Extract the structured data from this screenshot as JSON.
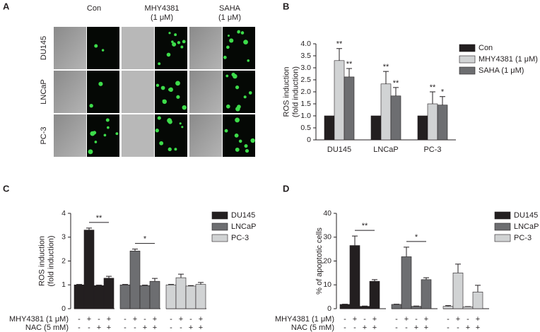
{
  "panel_a": {
    "label": "A",
    "columns": [
      [
        "Con"
      ],
      [
        "MHY4381",
        "(1 μM)"
      ],
      [
        "SAHA",
        "(1 μM)"
      ]
    ],
    "rows": [
      "DU145",
      "LNCaP",
      "PC-3"
    ]
  },
  "chart_data": [
    {
      "type": "bar",
      "label": "B",
      "ylabel": [
        "ROS induction",
        "(fold induction)"
      ],
      "categories": [
        "DU145",
        "LNCaP",
        "PC-3"
      ],
      "series": [
        {
          "name": "Con",
          "color": "#231f20",
          "values": [
            1,
            1,
            1
          ]
        },
        {
          "name": "MHY4381 (1 μM)",
          "color": "#d1d3d4",
          "values": [
            3.3,
            2.33,
            1.5
          ],
          "errors": [
            0.5,
            0.52,
            0.5
          ],
          "significance": [
            "**",
            "**",
            "**"
          ]
        },
        {
          "name": "SAHA (1 μM)",
          "color": "#6d6e71",
          "values": [
            2.62,
            1.83,
            1.45
          ],
          "errors": [
            0.35,
            0.35,
            0.35
          ],
          "significance": [
            "**",
            "**",
            "*"
          ]
        }
      ],
      "ylim": [
        0,
        4
      ],
      "yticks": [
        0,
        0.5,
        {
          "value": 1,
          "label": "1.0"
        },
        1.5,
        {
          "value": 2,
          "label": "2.0"
        },
        2.5,
        {
          "value": 3,
          "label": "3.0"
        },
        3.5,
        {
          "value": 4,
          "label": "4.0"
        }
      ]
    },
    {
      "type": "bar",
      "label": "C",
      "ylabel": [
        "ROS induction",
        "(fold induction)"
      ],
      "conditions": [
        {
          "name": "MHY4381 (1 μM)",
          "signs": [
            "-",
            "+",
            "-",
            "+"
          ]
        },
        {
          "name": "NAC (5 mM)",
          "signs": [
            "-",
            "-",
            "+",
            "+"
          ]
        }
      ],
      "series": [
        {
          "name": "DU145",
          "color": "#231f20",
          "values": [
            1,
            3.3,
            0.97,
            1.28
          ],
          "errors": [
            0.02,
            0.08,
            0.02,
            0.08
          ],
          "bracket": "**"
        },
        {
          "name": "LNCaP",
          "color": "#6d6e71",
          "values": [
            1,
            2.42,
            0.97,
            1.15
          ],
          "errors": [
            0.02,
            0.08,
            0.02,
            0.12
          ],
          "bracket": "*"
        },
        {
          "name": "PC-3",
          "color": "#d1d3d4",
          "values": [
            1,
            1.3,
            0.95,
            1.02
          ],
          "errors": [
            0.02,
            0.15,
            0.02,
            0.08
          ]
        }
      ],
      "ylim": [
        0,
        4
      ],
      "yticks": [
        0,
        1,
        2,
        3,
        4
      ]
    },
    {
      "type": "bar",
      "label": "D",
      "ylabel": [
        "% of apoptotic cells"
      ],
      "conditions": [
        {
          "name": "MHY4381 (1 μM)",
          "signs": [
            "-",
            "+",
            "-",
            "+"
          ]
        },
        {
          "name": "NAC (5 mM)",
          "signs": [
            "-",
            "-",
            "+",
            "+"
          ]
        }
      ],
      "series": [
        {
          "name": "DU145",
          "color": "#231f20",
          "values": [
            1.8,
            26.5,
            1,
            11.5
          ],
          "errors": [
            0.1,
            4,
            0.1,
            0.7
          ],
          "bracket": "**"
        },
        {
          "name": "LNCaP",
          "color": "#6d6e71",
          "values": [
            1.8,
            21.8,
            1,
            12.2
          ],
          "errors": [
            0.1,
            4,
            0.1,
            0.8
          ],
          "bracket": "*"
        },
        {
          "name": "PC-3",
          "color": "#d1d3d4",
          "values": [
            1,
            15,
            0.8,
            7
          ],
          "errors": [
            0.3,
            3.7,
            0.1,
            2.8
          ]
        }
      ],
      "ylim": [
        0,
        40
      ],
      "yticks": [
        0,
        10,
        20,
        30,
        40
      ]
    }
  ]
}
